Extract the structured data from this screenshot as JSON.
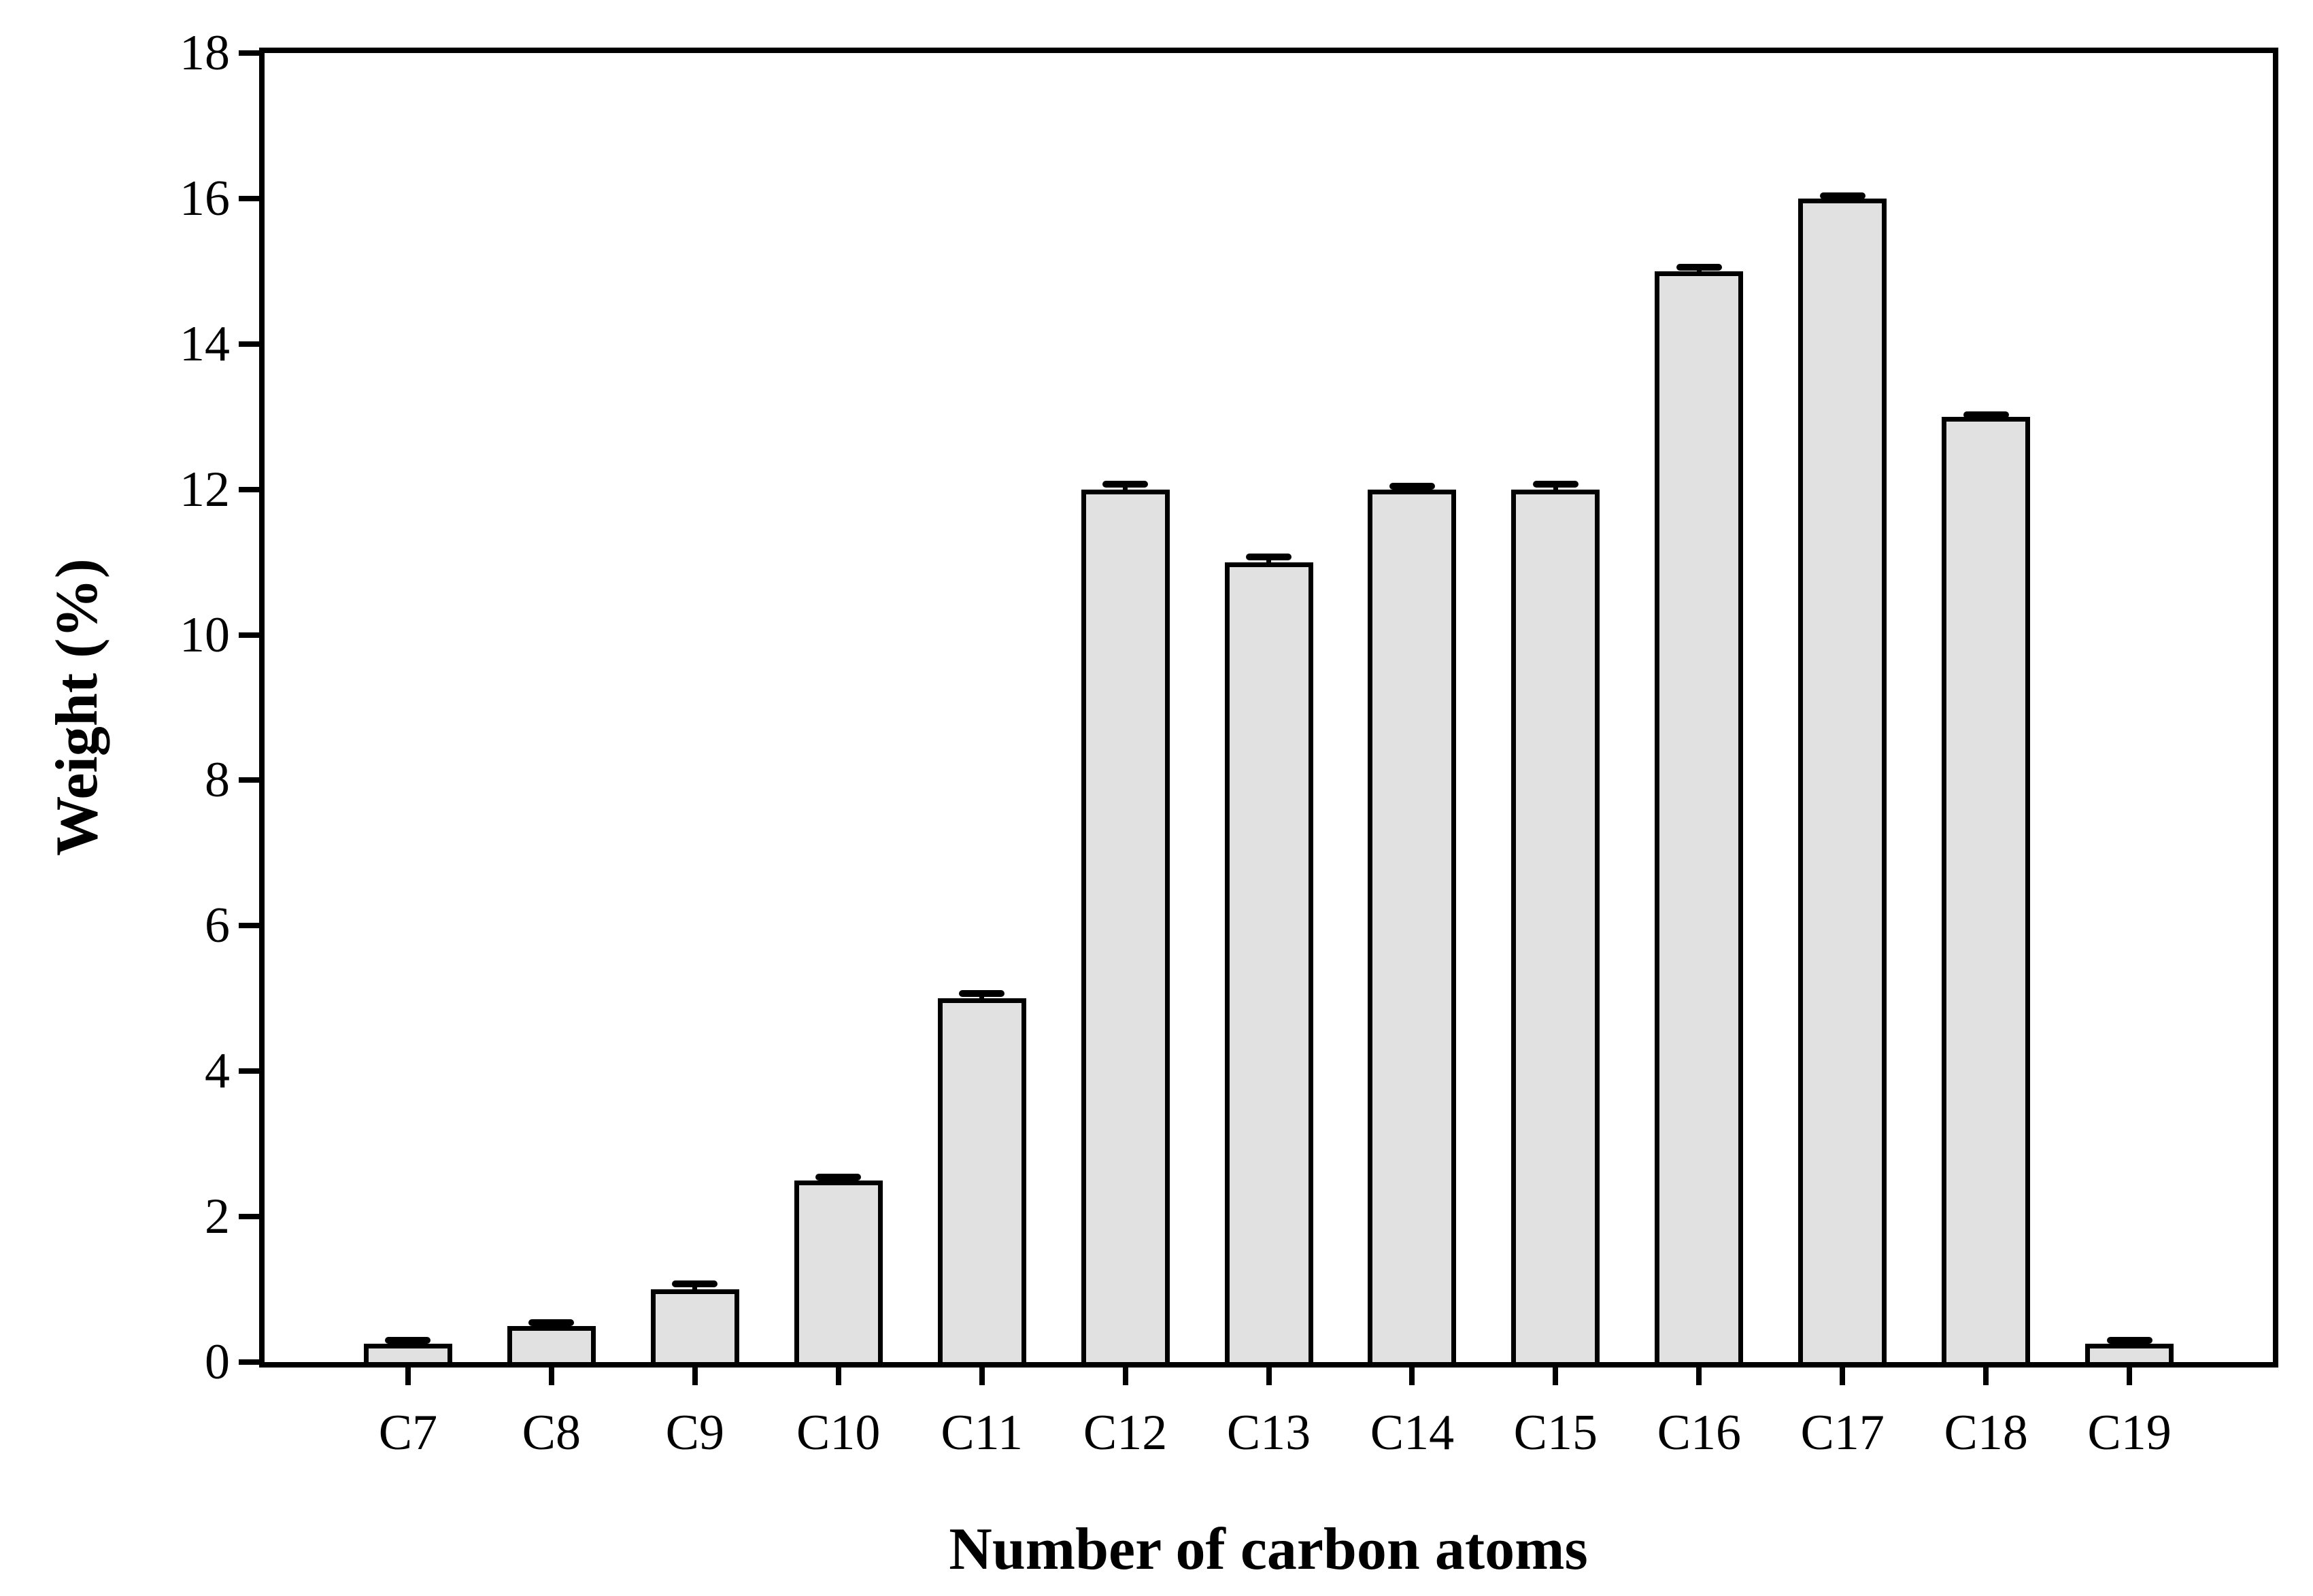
{
  "chart_data": {
    "type": "bar",
    "title": "",
    "xlabel": "Number of carbon atoms",
    "ylabel": "Weight (%)",
    "categories": [
      "C7",
      "C8",
      "C9",
      "C10",
      "C11",
      "C12",
      "C13",
      "C14",
      "C15",
      "C16",
      "C17",
      "C18",
      "C19"
    ],
    "values": [
      0.25,
      0.5,
      1.0,
      2.5,
      5.0,
      12.0,
      11.0,
      12.0,
      12.0,
      15.0,
      16.0,
      13.0,
      0.25
    ],
    "errors": [
      0.05,
      0.04,
      0.08,
      0.04,
      0.07,
      0.07,
      0.07,
      0.04,
      0.07,
      0.05,
      0.04,
      0.03,
      0.05
    ],
    "yticks": [
      0,
      2,
      4,
      6,
      8,
      10,
      12,
      14,
      16,
      18
    ],
    "ylim": [
      0,
      18
    ],
    "grid": false,
    "legend": null,
    "error_bars": "upper",
    "bar_fill": "#e1e1e1",
    "bar_edge": "#000000",
    "axis_color": "#000000",
    "background": "#ffffff"
  }
}
